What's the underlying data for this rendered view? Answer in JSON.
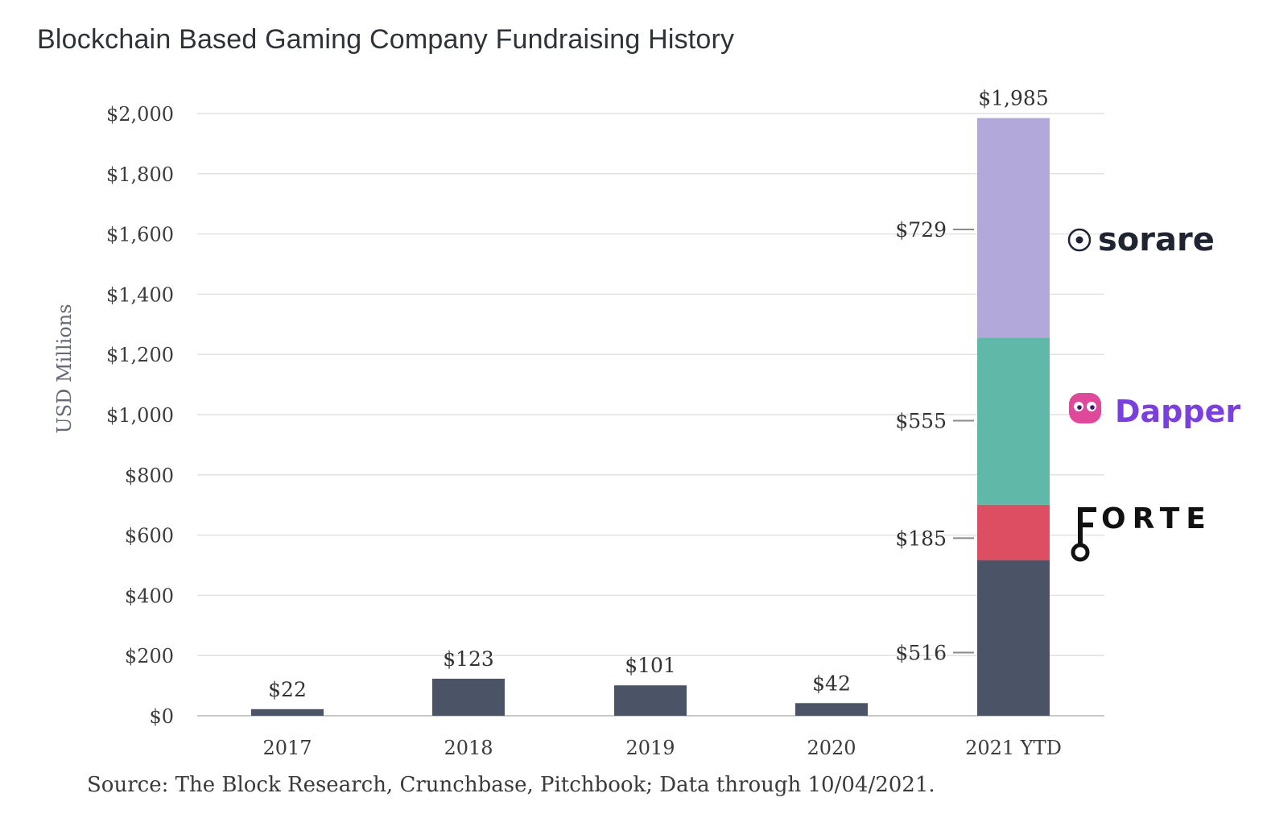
{
  "title": "Blockchain Based Gaming Company Fundraising History",
  "source": "Source: The Block Research, Crunchbase, Pitchbook; Data through 10/04/2021.",
  "chart_data": {
    "type": "bar",
    "stacked": true,
    "ylabel": "USD Millions",
    "ylim": [
      0,
      2000
    ],
    "yticks": [
      0,
      200,
      400,
      600,
      800,
      1000,
      1200,
      1400,
      1600,
      1800,
      2000
    ],
    "ytick_labels": [
      "$0",
      "$200",
      "$400",
      "$600",
      "$800",
      "$1,000",
      "$1,200",
      "$1,400",
      "$1,600",
      "$1,800",
      "$2,000"
    ],
    "grid": true,
    "categories": [
      "2017",
      "2018",
      "2019",
      "2020",
      "2021 YTD"
    ],
    "totals": [
      22,
      123,
      101,
      42,
      1985
    ],
    "total_labels": [
      "$22",
      "$123",
      "$101",
      "$42",
      "$1,985"
    ],
    "series": [
      {
        "values": [
          22,
          123,
          101,
          42,
          516
        ],
        "color": "#4a5466",
        "label_2021": "$516"
      },
      {
        "name": "FORTE",
        "values": [
          0,
          0,
          0,
          0,
          185
        ],
        "color": "#de4e63",
        "label_2021": "$185"
      },
      {
        "name": "Dapper",
        "values": [
          0,
          0,
          0,
          0,
          555
        ],
        "color": "#5fb8a8",
        "label_2021": "$555"
      },
      {
        "name": "sorare",
        "values": [
          0,
          0,
          0,
          0,
          729
        ],
        "color": "#b2a8d9",
        "label_2021": "$729"
      }
    ],
    "logos": {
      "sorare": {
        "text": "sorare",
        "color": "#1f2430",
        "icon": "soccer-ball-icon"
      },
      "dapper": {
        "text": "Dapper",
        "color": "#7a3fe0",
        "icon_color": "#e0489a",
        "icon": "dapper-face-icon"
      },
      "forte": {
        "text": "FORTE",
        "color": "#111111",
        "icon": "forte-key-icon"
      }
    }
  }
}
